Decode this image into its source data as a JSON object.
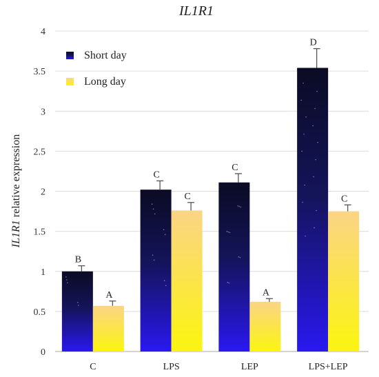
{
  "chart_data": {
    "type": "bar",
    "title": "IL1R1",
    "ylabel_italic": "IL1R1",
    "ylabel_rest": " relative expression",
    "categories": [
      "C",
      "LPS",
      "LEP",
      "LPS+LEP"
    ],
    "ylim": [
      0,
      4
    ],
    "yticks": [
      0,
      0.5,
      1,
      1.5,
      2,
      2.5,
      3,
      3.5,
      4
    ],
    "ytick_labels": [
      "0",
      "0.5",
      "1",
      "1.5",
      "2",
      "2.5",
      "3",
      "3.5",
      "4"
    ],
    "grid": true,
    "legend_position": "top-left",
    "series": [
      {
        "name": "Short day",
        "values": [
          1.0,
          2.02,
          2.11,
          3.54
        ],
        "errors": [
          0.07,
          0.11,
          0.11,
          0.24
        ],
        "letters": [
          "B",
          "C",
          "C",
          "D"
        ],
        "color_top": "#0b0b24",
        "color_bottom": "#2a18f0"
      },
      {
        "name": "Long day",
        "values": [
          0.57,
          1.76,
          0.62,
          1.75
        ],
        "errors": [
          0.06,
          0.1,
          0.04,
          0.08
        ],
        "letters": [
          "A",
          "C",
          "A",
          "C"
        ],
        "color_top": "#fbd486",
        "color_bottom": "#fbf50e"
      }
    ]
  }
}
